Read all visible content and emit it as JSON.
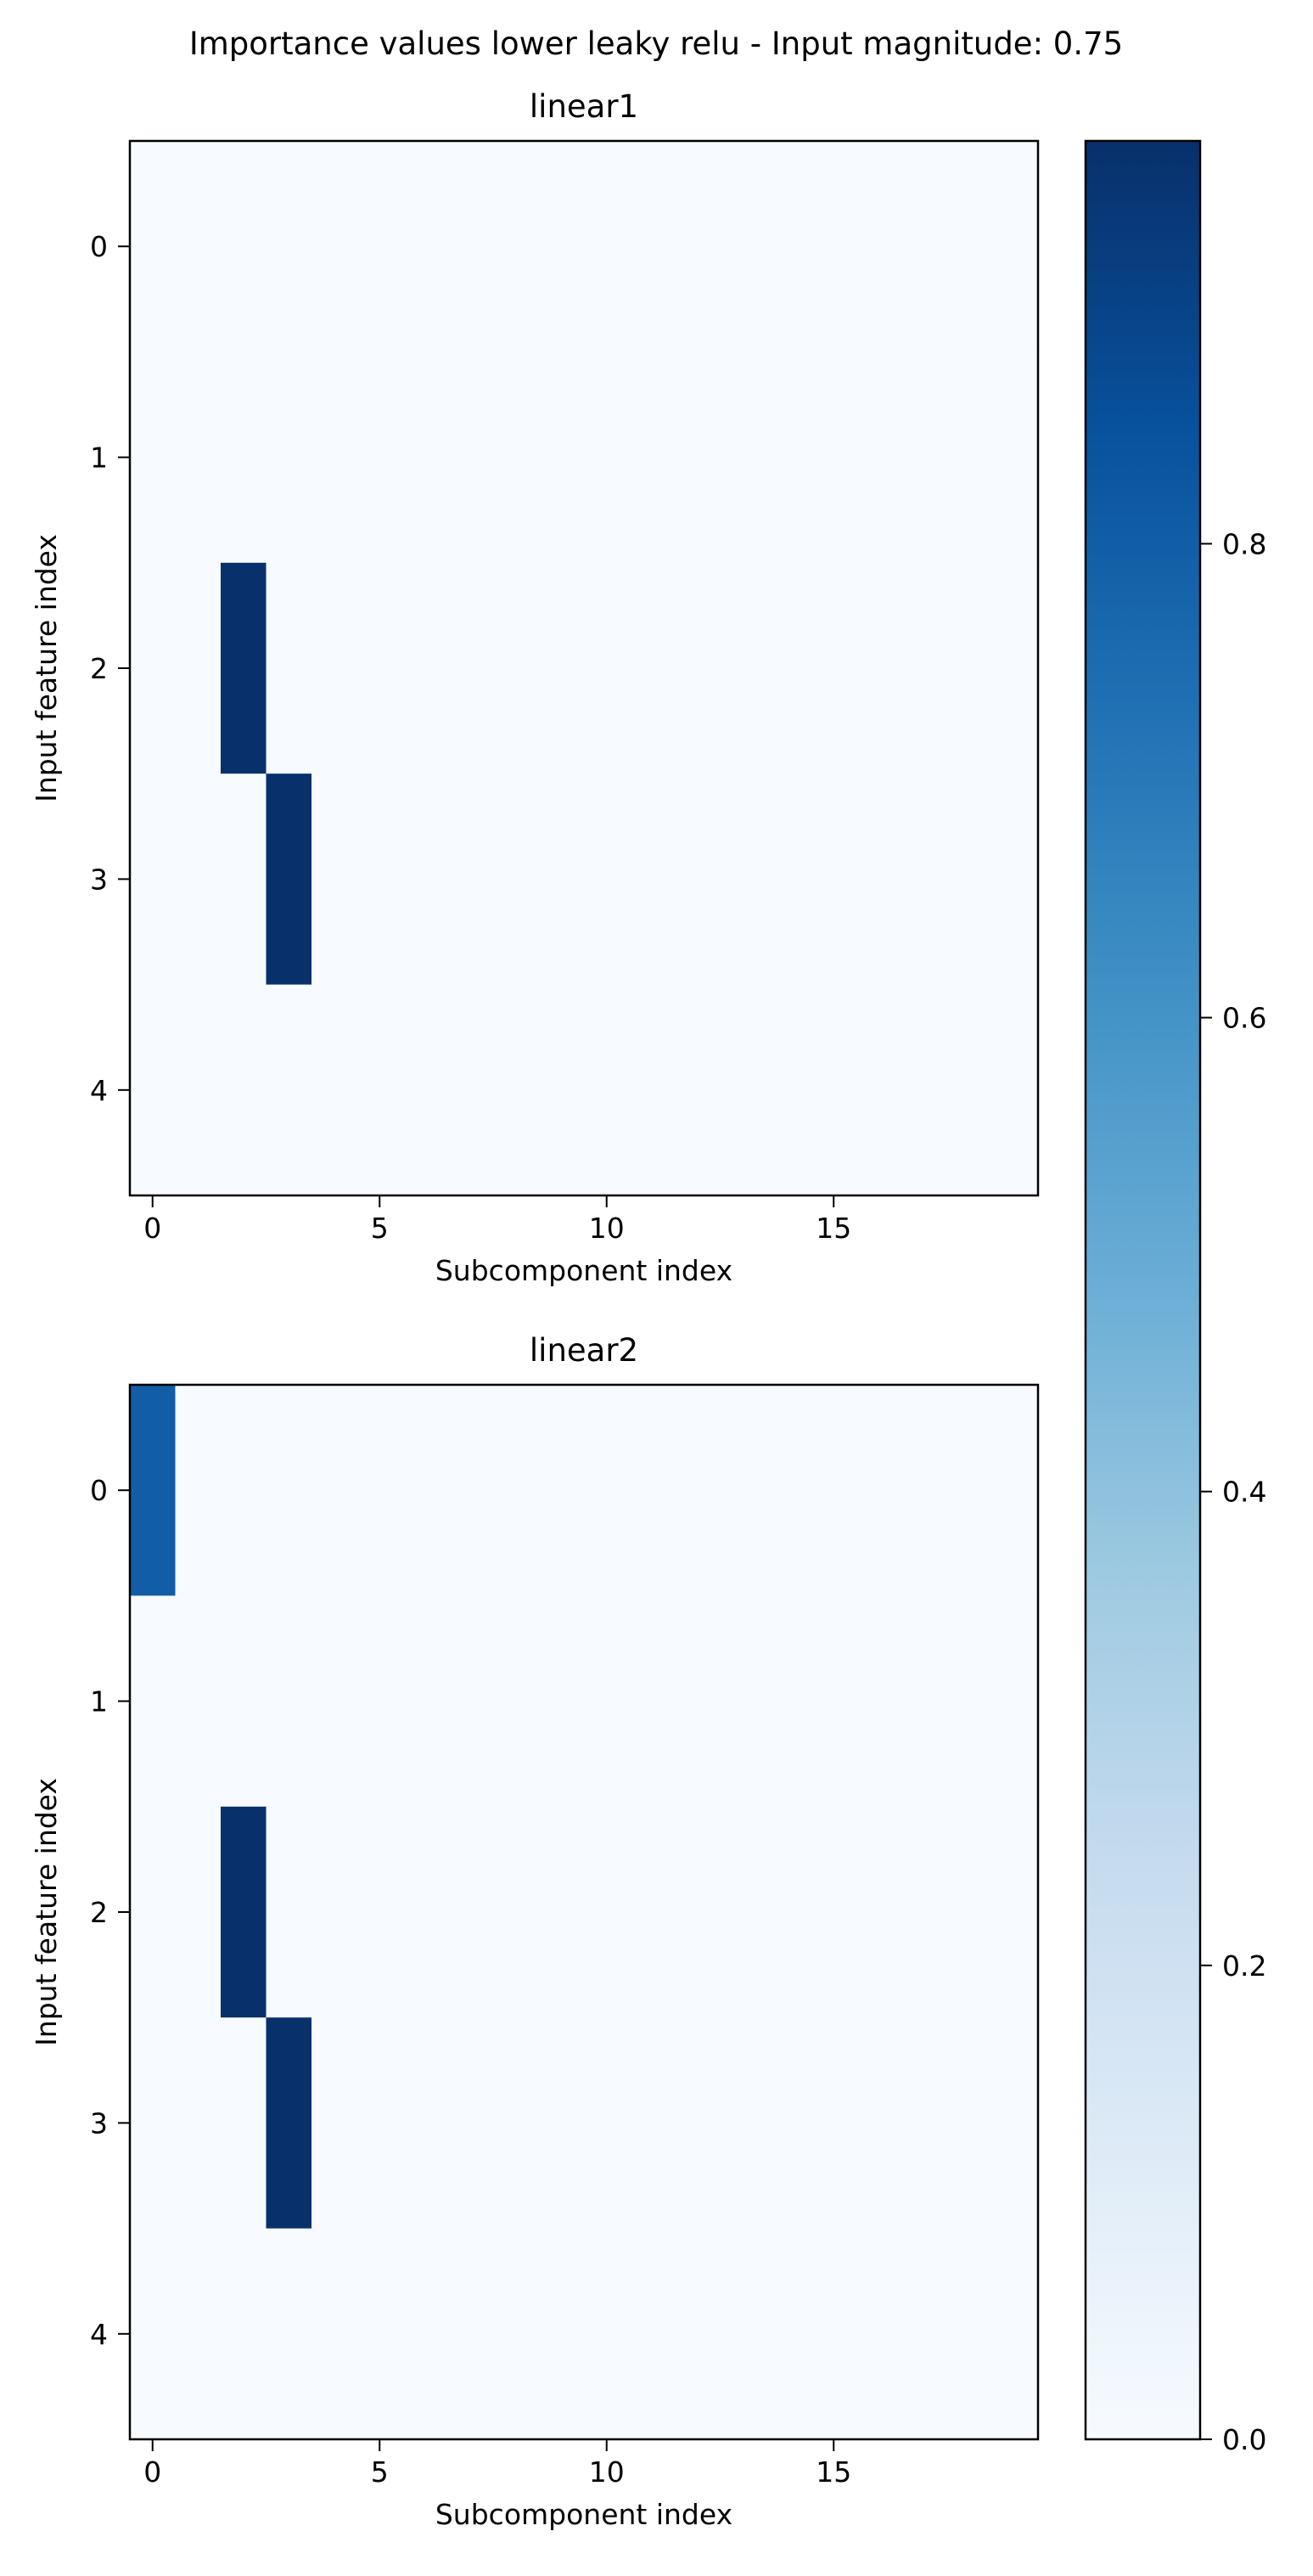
{
  "title": "Importance values lower leaky relu - Input magnitude: 0.75",
  "colormap": {
    "name": "Blues",
    "stops": [
      "#f7fbff",
      "#deebf7",
      "#c6dbef",
      "#9ecae1",
      "#6baed6",
      "#4292c6",
      "#2171b5",
      "#08519c",
      "#08306b"
    ],
    "range": [
      0,
      0.97
    ],
    "ticks": [
      0.0,
      0.2,
      0.4,
      0.6,
      0.8
    ],
    "tick_labels": [
      "0.0",
      "0.2",
      "0.4",
      "0.6",
      "0.8"
    ]
  },
  "chart_data": [
    {
      "type": "heatmap",
      "title": "linear1",
      "xlabel": "Subcomponent index",
      "ylabel": "Input feature index",
      "n_cols": 20,
      "n_rows": 5,
      "x_ticks": [
        0,
        5,
        10,
        15
      ],
      "x_tick_labels": [
        "0",
        "5",
        "10",
        "15"
      ],
      "y_ticks": [
        0,
        1,
        2,
        3,
        4
      ],
      "y_tick_labels": [
        "0",
        "1",
        "2",
        "3",
        "4"
      ],
      "background_value": 0.0,
      "cells": [
        {
          "row": 2,
          "col": 2,
          "value": 0.97
        },
        {
          "row": 3,
          "col": 3,
          "value": 0.97
        }
      ]
    },
    {
      "type": "heatmap",
      "title": "linear2",
      "xlabel": "Subcomponent index",
      "ylabel": "Input feature index",
      "n_cols": 20,
      "n_rows": 5,
      "x_ticks": [
        0,
        5,
        10,
        15
      ],
      "x_tick_labels": [
        "0",
        "5",
        "10",
        "15"
      ],
      "y_ticks": [
        0,
        1,
        2,
        3,
        4
      ],
      "y_tick_labels": [
        "0",
        "1",
        "2",
        "3",
        "4"
      ],
      "background_value": 0.0,
      "cells": [
        {
          "row": 0,
          "col": 0,
          "value": 0.8
        },
        {
          "row": 2,
          "col": 2,
          "value": 0.97
        },
        {
          "row": 3,
          "col": 3,
          "value": 0.97
        }
      ]
    }
  ]
}
